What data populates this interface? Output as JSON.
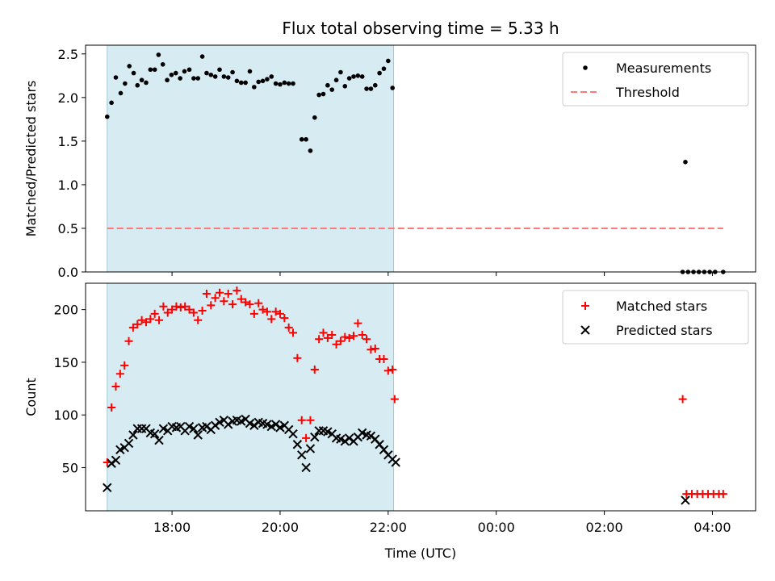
{
  "figure_title": "Flux total observing time = 5.33 h",
  "chart_data": [
    {
      "type": "scatter",
      "title": "Flux total observing time = 5.33 h",
      "xlabel": "",
      "ylabel": "Matched/Predicted stars",
      "xlim": [
        16.4,
        28.8
      ],
      "ylim": [
        0,
        2.6
      ],
      "yticks": [
        0.0,
        0.5,
        1.0,
        1.5,
        2.0,
        2.5
      ],
      "ytick_labels": [
        "0.0",
        "0.5",
        "1.0",
        "1.5",
        "2.0",
        "2.5"
      ],
      "shaded_span": [
        16.8,
        22.1
      ],
      "shade_color": "#add8e6",
      "series": [
        {
          "name": "Measurements",
          "marker": "dot",
          "color": "#000000",
          "points": [
            [
              16.8,
              1.78
            ],
            [
              16.88,
              1.94
            ],
            [
              16.96,
              2.23
            ],
            [
              17.05,
              2.05
            ],
            [
              17.13,
              2.16
            ],
            [
              17.21,
              2.36
            ],
            [
              17.29,
              2.28
            ],
            [
              17.36,
              2.14
            ],
            [
              17.44,
              2.2
            ],
            [
              17.52,
              2.17
            ],
            [
              17.6,
              2.32
            ],
            [
              17.68,
              2.32
            ],
            [
              17.75,
              2.49
            ],
            [
              17.83,
              2.38
            ],
            [
              17.91,
              2.2
            ],
            [
              17.99,
              2.26
            ],
            [
              18.07,
              2.28
            ],
            [
              18.15,
              2.22
            ],
            [
              18.23,
              2.3
            ],
            [
              18.32,
              2.32
            ],
            [
              18.4,
              2.22
            ],
            [
              18.48,
              2.22
            ],
            [
              18.56,
              2.47
            ],
            [
              18.64,
              2.28
            ],
            [
              18.72,
              2.26
            ],
            [
              18.8,
              2.24
            ],
            [
              18.88,
              2.32
            ],
            [
              18.96,
              2.24
            ],
            [
              19.04,
              2.23
            ],
            [
              19.12,
              2.29
            ],
            [
              19.2,
              2.19
            ],
            [
              19.28,
              2.17
            ],
            [
              19.36,
              2.17
            ],
            [
              19.44,
              2.3
            ],
            [
              19.52,
              2.12
            ],
            [
              19.6,
              2.18
            ],
            [
              19.68,
              2.19
            ],
            [
              19.76,
              2.21
            ],
            [
              19.84,
              2.24
            ],
            [
              19.92,
              2.16
            ],
            [
              20.0,
              2.15
            ],
            [
              20.08,
              2.17
            ],
            [
              20.16,
              2.16
            ],
            [
              20.24,
              2.16
            ],
            [
              20.4,
              1.52
            ],
            [
              20.48,
              1.52
            ],
            [
              20.56,
              1.39
            ],
            [
              20.64,
              1.77
            ],
            [
              20.72,
              2.03
            ],
            [
              20.8,
              2.04
            ],
            [
              20.88,
              2.14
            ],
            [
              20.96,
              2.09
            ],
            [
              21.04,
              2.2
            ],
            [
              21.12,
              2.29
            ],
            [
              21.2,
              2.13
            ],
            [
              21.28,
              2.22
            ],
            [
              21.36,
              2.24
            ],
            [
              21.44,
              2.25
            ],
            [
              21.52,
              2.24
            ],
            [
              21.6,
              2.1
            ],
            [
              21.68,
              2.1
            ],
            [
              21.76,
              2.14
            ],
            [
              21.84,
              2.28
            ],
            [
              21.92,
              2.33
            ],
            [
              22.0,
              2.42
            ],
            [
              22.08,
              2.11
            ],
            [
              27.5,
              1.26
            ],
            [
              27.45,
              0.0
            ],
            [
              27.55,
              0.0
            ],
            [
              27.65,
              0.0
            ],
            [
              27.75,
              0.0
            ],
            [
              27.85,
              0.0
            ],
            [
              27.95,
              0.0
            ],
            [
              28.05,
              0.0
            ],
            [
              28.2,
              0.0
            ]
          ]
        },
        {
          "name": "Threshold",
          "style": "dashed",
          "color": "#ff7777",
          "points": [
            [
              16.8,
              0.5
            ],
            [
              28.2,
              0.5
            ]
          ]
        }
      ],
      "legend_position": "upper right"
    },
    {
      "type": "scatter",
      "title": "",
      "xlabel": "Time (UTC)",
      "ylabel": "Count",
      "xlim": [
        16.4,
        28.8
      ],
      "ylim": [
        9,
        225
      ],
      "xticks": [
        18,
        20,
        22,
        24,
        26,
        28
      ],
      "xtick_labels": [
        "18:00",
        "20:00",
        "22:00",
        "00:00",
        "02:00",
        "04:00"
      ],
      "yticks": [
        50,
        100,
        150,
        200
      ],
      "ytick_labels": [
        "50",
        "100",
        "150",
        "200"
      ],
      "shaded_span": [
        16.8,
        22.1
      ],
      "shade_color": "#add8e6",
      "series": [
        {
          "name": "Matched stars",
          "marker": "plus",
          "color": "#ff0000",
          "points": [
            [
              16.8,
              55
            ],
            [
              16.88,
              107
            ],
            [
              16.96,
              127
            ],
            [
              17.04,
              139
            ],
            [
              17.12,
              147
            ],
            [
              17.2,
              170
            ],
            [
              17.28,
              183
            ],
            [
              17.36,
              186
            ],
            [
              17.44,
              190
            ],
            [
              17.52,
              188
            ],
            [
              17.6,
              191
            ],
            [
              17.68,
              196
            ],
            [
              17.76,
              190
            ],
            [
              17.84,
              203
            ],
            [
              17.92,
              197
            ],
            [
              18.0,
              200
            ],
            [
              18.08,
              203
            ],
            [
              18.16,
              202
            ],
            [
              18.24,
              203
            ],
            [
              18.32,
              200
            ],
            [
              18.4,
              197
            ],
            [
              18.48,
              190
            ],
            [
              18.56,
              199
            ],
            [
              18.64,
              215
            ],
            [
              18.72,
              204
            ],
            [
              18.8,
              211
            ],
            [
              18.88,
              216
            ],
            [
              18.96,
              208
            ],
            [
              19.04,
              215
            ],
            [
              19.12,
              205
            ],
            [
              19.2,
              218
            ],
            [
              19.28,
              210
            ],
            [
              19.36,
              207
            ],
            [
              19.44,
              205
            ],
            [
              19.52,
              196
            ],
            [
              19.6,
              206
            ],
            [
              19.68,
              200
            ],
            [
              19.76,
              198
            ],
            [
              19.84,
              191
            ],
            [
              19.92,
              198
            ],
            [
              20.0,
              196
            ],
            [
              20.08,
              192
            ],
            [
              20.16,
              183
            ],
            [
              20.24,
              178
            ],
            [
              20.32,
              154
            ],
            [
              20.4,
              95
            ],
            [
              20.48,
              78
            ],
            [
              20.56,
              95
            ],
            [
              20.64,
              143
            ],
            [
              20.72,
              172
            ],
            [
              20.8,
              178
            ],
            [
              20.88,
              173
            ],
            [
              20.96,
              176
            ],
            [
              21.04,
              167
            ],
            [
              21.12,
              170
            ],
            [
              21.2,
              174
            ],
            [
              21.28,
              173
            ],
            [
              21.36,
              175
            ],
            [
              21.44,
              187
            ],
            [
              21.52,
              176
            ],
            [
              21.6,
              172
            ],
            [
              21.68,
              162
            ],
            [
              21.76,
              163
            ],
            [
              21.84,
              153
            ],
            [
              21.92,
              153
            ],
            [
              22.0,
              142
            ],
            [
              22.08,
              143
            ],
            [
              22.12,
              115
            ],
            [
              27.45,
              115
            ],
            [
              27.52,
              25
            ],
            [
              27.62,
              25
            ],
            [
              27.72,
              25
            ],
            [
              27.82,
              25
            ],
            [
              27.92,
              25
            ],
            [
              28.02,
              25
            ],
            [
              28.12,
              25
            ],
            [
              28.2,
              25
            ]
          ]
        },
        {
          "name": "Predicted stars",
          "marker": "x",
          "color": "#000000",
          "points": [
            [
              16.8,
              31
            ],
            [
              16.88,
              54
            ],
            [
              16.96,
              57
            ],
            [
              17.04,
              67
            ],
            [
              17.12,
              69
            ],
            [
              17.2,
              73
            ],
            [
              17.28,
              81
            ],
            [
              17.36,
              87
            ],
            [
              17.44,
              87
            ],
            [
              17.52,
              87
            ],
            [
              17.6,
              83
            ],
            [
              17.68,
              82
            ],
            [
              17.76,
              76
            ],
            [
              17.84,
              87
            ],
            [
              17.92,
              85
            ],
            [
              18.0,
              89
            ],
            [
              18.08,
              88
            ],
            [
              18.16,
              89
            ],
            [
              18.24,
              85
            ],
            [
              18.32,
              89
            ],
            [
              18.4,
              87
            ],
            [
              18.48,
              81
            ],
            [
              18.56,
              88
            ],
            [
              18.64,
              89
            ],
            [
              18.72,
              86
            ],
            [
              18.8,
              90
            ],
            [
              18.88,
              93
            ],
            [
              18.96,
              95
            ],
            [
              19.04,
              91
            ],
            [
              19.12,
              94
            ],
            [
              19.2,
              95
            ],
            [
              19.28,
              94
            ],
            [
              19.36,
              96
            ],
            [
              19.44,
              92
            ],
            [
              19.52,
              90
            ],
            [
              19.6,
              93
            ],
            [
              19.68,
              92
            ],
            [
              19.76,
              91
            ],
            [
              19.84,
              89
            ],
            [
              19.92,
              91
            ],
            [
              20.0,
              88
            ],
            [
              20.08,
              90
            ],
            [
              20.16,
              86
            ],
            [
              20.24,
              82
            ],
            [
              20.32,
              72
            ],
            [
              20.4,
              62
            ],
            [
              20.48,
              50
            ],
            [
              20.56,
              68
            ],
            [
              20.64,
              79
            ],
            [
              20.72,
              85
            ],
            [
              20.8,
              85
            ],
            [
              20.88,
              84
            ],
            [
              20.96,
              82
            ],
            [
              21.04,
              78
            ],
            [
              21.12,
              77
            ],
            [
              21.2,
              75
            ],
            [
              21.28,
              78
            ],
            [
              21.36,
              75
            ],
            [
              21.44,
              79
            ],
            [
              21.52,
              83
            ],
            [
              21.6,
              81
            ],
            [
              21.68,
              80
            ],
            [
              21.76,
              77
            ],
            [
              21.84,
              72
            ],
            [
              21.92,
              67
            ],
            [
              22.0,
              62
            ],
            [
              22.08,
              58
            ],
            [
              22.14,
              55
            ],
            [
              27.5,
              19
            ]
          ]
        }
      ],
      "legend_position": "upper right"
    }
  ]
}
